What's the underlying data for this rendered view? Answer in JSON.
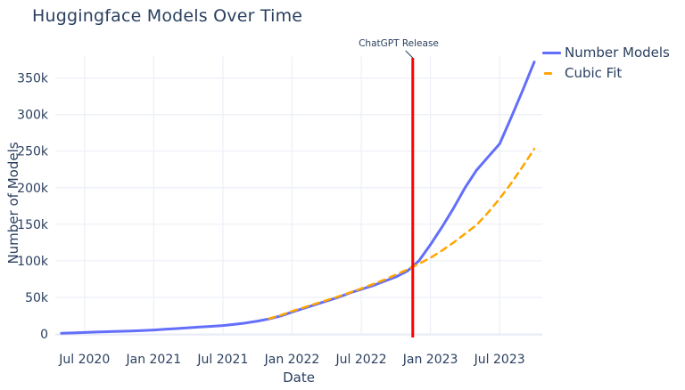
{
  "page": {
    "background": "#ffffff",
    "text_color": "#2a3f5f",
    "grid_color": "#eef0f9",
    "axisline_color": "#e6eaf4"
  },
  "chart_data": {
    "type": "line",
    "title": "Huggingface Models Over Time",
    "xlabel": "Date",
    "ylabel": "Number of Models",
    "grid": true,
    "legend_position": "top-right",
    "x_ticks": [
      {
        "label": "Jul 2020",
        "date": "2020-07"
      },
      {
        "label": "Jan 2021",
        "date": "2021-01"
      },
      {
        "label": "Jul 2021",
        "date": "2021-07"
      },
      {
        "label": "Jan 2022",
        "date": "2022-01"
      },
      {
        "label": "Jul 2022",
        "date": "2022-07"
      },
      {
        "label": "Jan 2023",
        "date": "2023-01"
      },
      {
        "label": "Jul 2023",
        "date": "2023-07"
      }
    ],
    "y_ticks": [
      {
        "label": "0",
        "value": 0
      },
      {
        "label": "50k",
        "value": 50000
      },
      {
        "label": "100k",
        "value": 100000
      },
      {
        "label": "150k",
        "value": 150000
      },
      {
        "label": "200k",
        "value": 200000
      },
      {
        "label": "250k",
        "value": 250000
      },
      {
        "label": "300k",
        "value": 300000
      },
      {
        "label": "350k",
        "value": 350000
      }
    ],
    "ylim": [
      0,
      380000
    ],
    "xlim": [
      "2020-04-15",
      "2023-10-22"
    ],
    "series": [
      {
        "name": "Number Models",
        "color": "#636EFA",
        "dash": "solid",
        "width": 3,
        "x": [
          "2020-05",
          "2020-06",
          "2020-07",
          "2020-08",
          "2020-09",
          "2020-10",
          "2020-11",
          "2020-12",
          "2021-01",
          "2021-02",
          "2021-03",
          "2021-04",
          "2021-05",
          "2021-06",
          "2021-07",
          "2021-08",
          "2021-09",
          "2021-10",
          "2021-11",
          "2021-12",
          "2022-01",
          "2022-02",
          "2022-03",
          "2022-04",
          "2022-05",
          "2022-06",
          "2022-07",
          "2022-08",
          "2022-09",
          "2022-10",
          "2022-11",
          "2022-12",
          "2023-01",
          "2023-02",
          "2023-03",
          "2023-04",
          "2023-05",
          "2023-06",
          "2023-07",
          "2023-08",
          "2023-09",
          "2023-10"
        ],
        "y": [
          800,
          1400,
          2000,
          2500,
          3000,
          3500,
          4000,
          4600,
          5400,
          6300,
          7300,
          8400,
          9400,
          10400,
          11500,
          13000,
          15000,
          17500,
          20500,
          24500,
          30000,
          35000,
          40000,
          45000,
          50000,
          56000,
          61000,
          66000,
          72000,
          78000,
          86000,
          100000,
          122000,
          146000,
          172000,
          200000,
          224000,
          242000,
          260000,
          296000,
          333000,
          372000
        ]
      },
      {
        "name": "Cubic Fit",
        "color": "#FFA500",
        "dash": "dash",
        "width": 2.5,
        "x": [
          "2021-11",
          "2021-12",
          "2022-01",
          "2022-02",
          "2022-03",
          "2022-04",
          "2022-05",
          "2022-06",
          "2022-07",
          "2022-08",
          "2022-09",
          "2022-10",
          "2022-11",
          "2022-12",
          "2023-01",
          "2023-02",
          "2023-03",
          "2023-04",
          "2023-05",
          "2023-06",
          "2023-07",
          "2023-08",
          "2023-09",
          "2023-10"
        ],
        "y": [
          21000,
          25500,
          31000,
          36000,
          41000,
          46000,
          51000,
          56500,
          62000,
          68000,
          74000,
          81000,
          88000,
          96000,
          104000,
          114000,
          125000,
          137000,
          149000,
          166000,
          185000,
          206000,
          229000,
          253000
        ]
      }
    ],
    "annotation": {
      "text": "ChatGPT Release",
      "x": "2022-11-15",
      "line_color": "#FF0000"
    }
  }
}
